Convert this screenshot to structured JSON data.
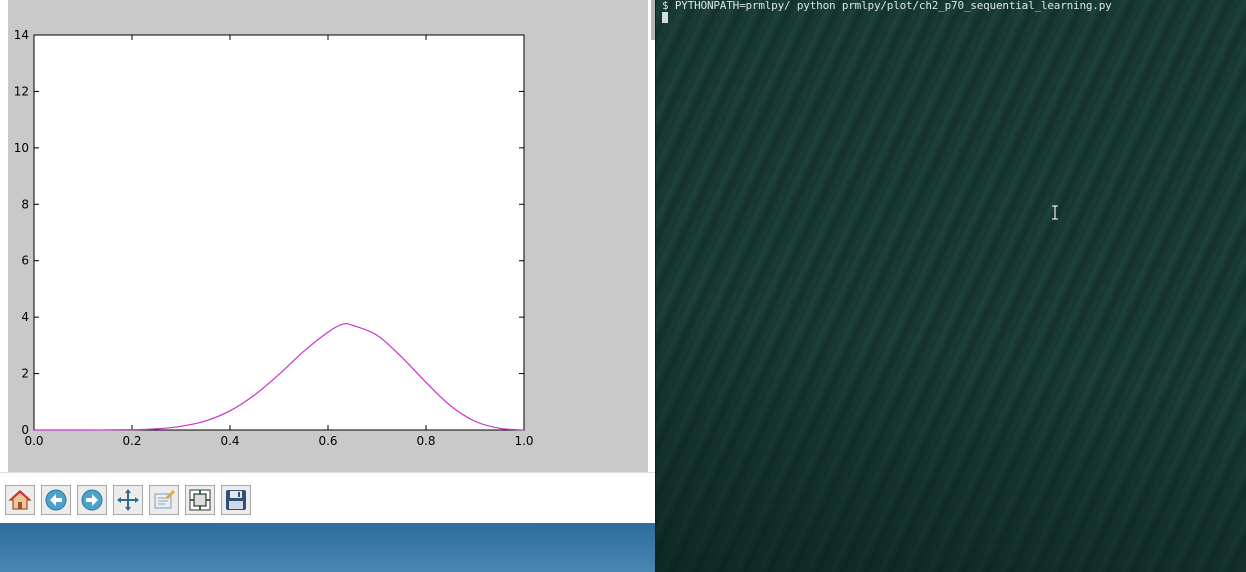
{
  "figure": {
    "chart_data": {
      "type": "line",
      "title": "",
      "xlabel": "",
      "ylabel": "",
      "xlim": [
        0.0,
        1.0
      ],
      "ylim": [
        0,
        14
      ],
      "x_ticks": [
        "0.0",
        "0.2",
        "0.4",
        "0.6",
        "0.8",
        "1.0"
      ],
      "y_ticks": [
        "0",
        "2",
        "4",
        "6",
        "8",
        "10",
        "12",
        "14"
      ],
      "grid": false,
      "series": [
        {
          "color": "#cc33cc",
          "x": [
            0.0,
            0.1,
            0.2,
            0.25,
            0.3,
            0.35,
            0.4,
            0.45,
            0.5,
            0.55,
            0.6,
            0.63,
            0.65,
            0.7,
            0.75,
            0.8,
            0.85,
            0.9,
            0.95,
            1.0
          ],
          "y": [
            0.0,
            0.0,
            0.01,
            0.04,
            0.13,
            0.32,
            0.68,
            1.24,
            1.97,
            2.78,
            3.47,
            3.75,
            3.71,
            3.36,
            2.59,
            1.69,
            0.86,
            0.31,
            0.06,
            0.0
          ]
        }
      ]
    }
  },
  "toolbar": {
    "buttons": [
      {
        "name": "home-icon"
      },
      {
        "name": "back-icon"
      },
      {
        "name": "forward-icon"
      },
      {
        "name": "pan-icon"
      },
      {
        "name": "zoom-icon"
      },
      {
        "name": "configure-subplots-icon"
      },
      {
        "name": "save-icon"
      }
    ]
  },
  "terminal": {
    "command_line": "$ PYTHONPATH=prmlpy/ python prmlpy/plot/ch2_p70_sequential_learning.py"
  }
}
